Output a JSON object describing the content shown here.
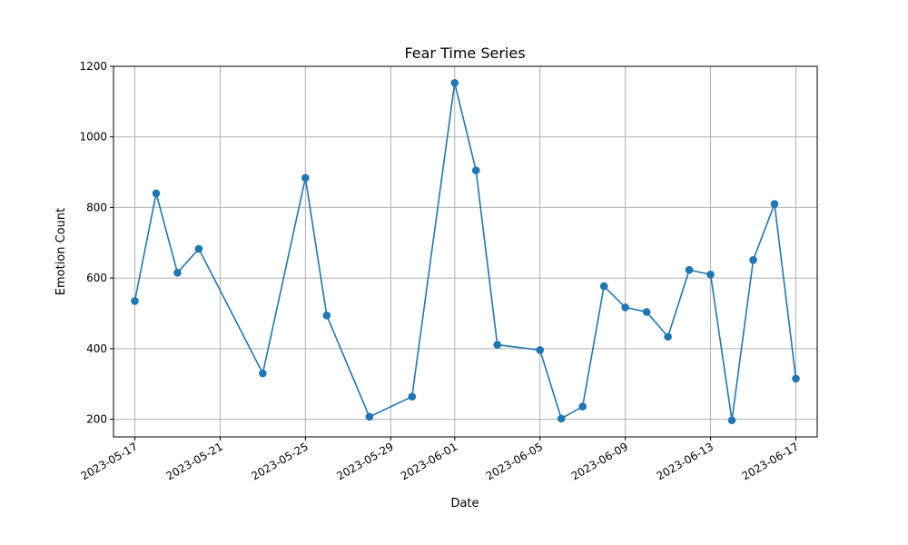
{
  "chart_data": {
    "type": "line",
    "title": "Fear Time Series",
    "xlabel": "Date",
    "ylabel": "Emotion Count",
    "x_tick_labels": [
      "2023-05-17",
      "2023-05-21",
      "2023-05-25",
      "2023-05-29",
      "2023-06-01",
      "2023-06-05",
      "2023-06-09",
      "2023-06-13",
      "2023-06-17"
    ],
    "y_ticks": [
      200,
      400,
      600,
      800,
      1000,
      1200
    ],
    "ylim": [
      150,
      1200
    ],
    "xlim": [
      "2023-05-16",
      "2023-06-18"
    ],
    "grid": true,
    "colors": {
      "series": "#1f77b4",
      "grid": "#b0b0b0"
    },
    "series": [
      {
        "name": "",
        "points": [
          {
            "x": "2023-05-17",
            "y": 535
          },
          {
            "x": "2023-05-18",
            "y": 840
          },
          {
            "x": "2023-05-19",
            "y": 615
          },
          {
            "x": "2023-05-20",
            "y": 683
          },
          {
            "x": "2023-05-23",
            "y": 330
          },
          {
            "x": "2023-05-25",
            "y": 884
          },
          {
            "x": "2023-05-26",
            "y": 494
          },
          {
            "x": "2023-05-28",
            "y": 207
          },
          {
            "x": "2023-05-30",
            "y": 264
          },
          {
            "x": "2023-06-01",
            "y": 1153
          },
          {
            "x": "2023-06-02",
            "y": 905
          },
          {
            "x": "2023-06-03",
            "y": 411
          },
          {
            "x": "2023-06-05",
            "y": 396
          },
          {
            "x": "2023-06-06",
            "y": 202
          },
          {
            "x": "2023-06-07",
            "y": 236
          },
          {
            "x": "2023-06-08",
            "y": 577
          },
          {
            "x": "2023-06-09",
            "y": 517
          },
          {
            "x": "2023-06-10",
            "y": 504
          },
          {
            "x": "2023-06-11",
            "y": 434
          },
          {
            "x": "2023-06-12",
            "y": 623
          },
          {
            "x": "2023-06-13",
            "y": 610
          },
          {
            "x": "2023-06-14",
            "y": 197
          },
          {
            "x": "2023-06-15",
            "y": 651
          },
          {
            "x": "2023-06-16",
            "y": 810
          },
          {
            "x": "2023-06-17",
            "y": 315
          }
        ]
      }
    ]
  }
}
